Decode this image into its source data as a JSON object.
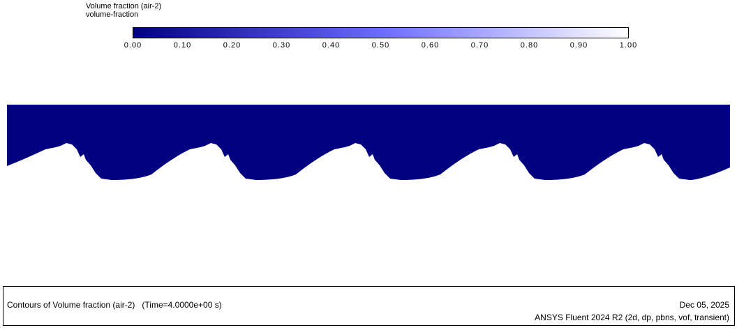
{
  "legend": {
    "title": "Volume fraction (air-2)",
    "subtitle": "volume-fraction",
    "ticks": [
      "0.00",
      "0.10",
      "0.20",
      "0.30",
      "0.40",
      "0.50",
      "0.60",
      "0.70",
      "0.80",
      "0.90",
      "1.00"
    ]
  },
  "footer": {
    "caption": "Contours of Volume fraction (air-2)   (Time=4.0000e+00 s)",
    "date": "Dec 05, 2025",
    "software": "ANSYS Fluent 2024 R2 (2d, dp, pbns, vof, transient)"
  }
}
